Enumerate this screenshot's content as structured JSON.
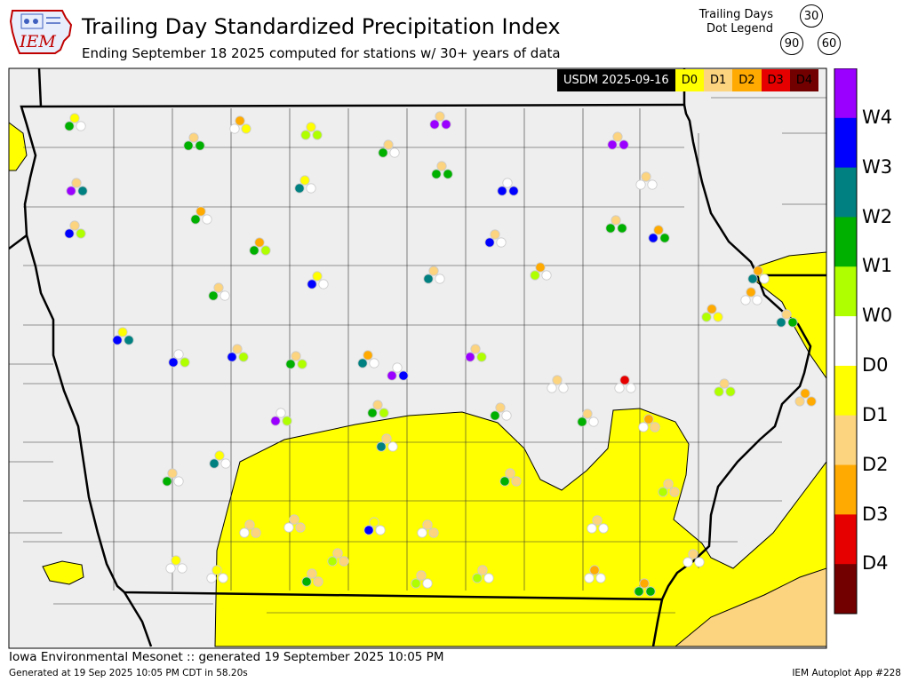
{
  "header": {
    "logo_text": "IEM",
    "title": "Trailing Day Standardized Precipitation Index",
    "subtitle": "Ending September 18 2025 computed for stations w/ 30+ years of data"
  },
  "dot_legend": {
    "label_line1": "Trailing Days",
    "label_line2": "Dot Legend",
    "top": "30",
    "left": "90",
    "right": "60"
  },
  "usdm_legend": {
    "date_label": "USDM 2025-09-16",
    "categories": [
      {
        "label": "D0",
        "color": "#ffff00"
      },
      {
        "label": "D1",
        "color": "#fcd37f"
      },
      {
        "label": "D2",
        "color": "#ffaa00"
      },
      {
        "label": "D3",
        "color": "#e60000"
      },
      {
        "label": "D4",
        "color": "#730000"
      }
    ]
  },
  "colorbar": {
    "labels": [
      "W4",
      "W3",
      "W2",
      "W1",
      "W0",
      "D0",
      "D1",
      "D2",
      "D3",
      "D4"
    ],
    "colors": [
      "#9a00ff",
      "#0000ff",
      "#008080",
      "#00b000",
      "#b0ff00",
      "#ffffff",
      "#ffff00",
      "#fcd37f",
      "#ffaa00",
      "#e60000",
      "#730000"
    ]
  },
  "footer": {
    "main": "Iowa Environmental Mesonet :: generated 19 September 2025 10:05 PM",
    "generated": "Generated at 19 Sep 2025 10:05 PM CDT in 58.20s",
    "app": "IEM Autoplot App #228"
  }
}
